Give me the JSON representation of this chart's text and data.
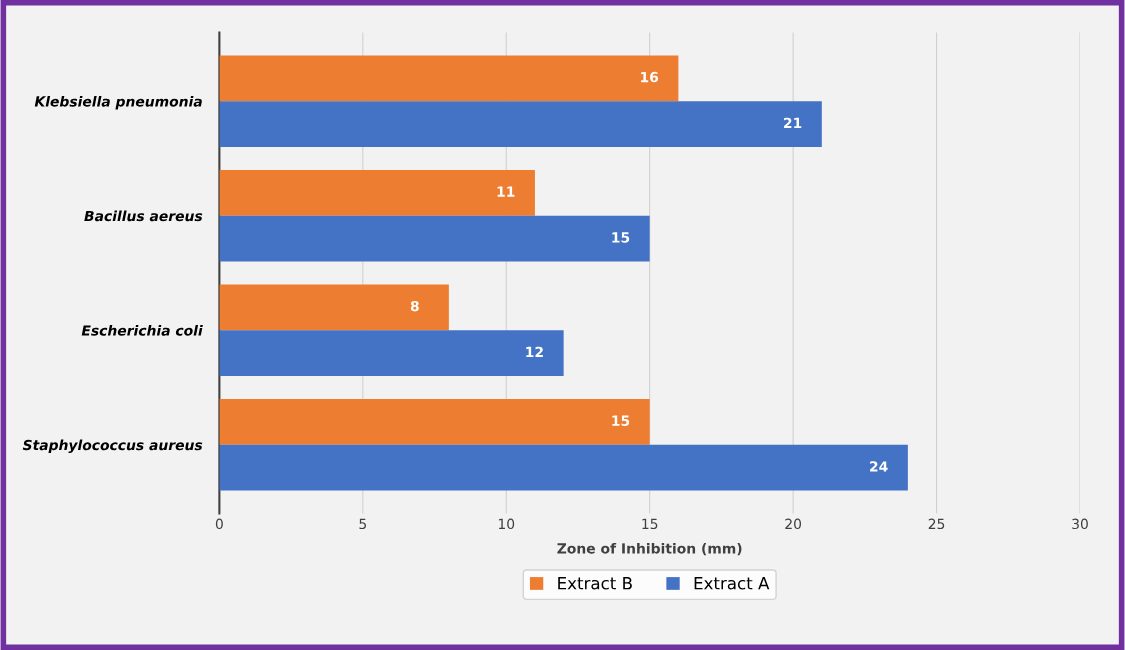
{
  "chart_data": {
    "type": "bar",
    "orientation": "horizontal",
    "xlabel": "Zone of Inhibition (mm)",
    "categories": [
      "Klebsiella pneumonia",
      "Bacillus aereus",
      "Escherichia coli",
      "Staphylococcus aureus"
    ],
    "series": [
      {
        "name": "Extract B",
        "color": "#ed7d31",
        "values": [
          16,
          11,
          8,
          15
        ]
      },
      {
        "name": "Extract A",
        "color": "#4472c4",
        "values": [
          21,
          15,
          12,
          24
        ]
      }
    ],
    "xlim": [
      0,
      30
    ],
    "xticks": [
      0,
      5,
      10,
      15,
      20,
      25,
      30
    ],
    "grid": "x",
    "legend": "bottom",
    "data_labels": true
  }
}
